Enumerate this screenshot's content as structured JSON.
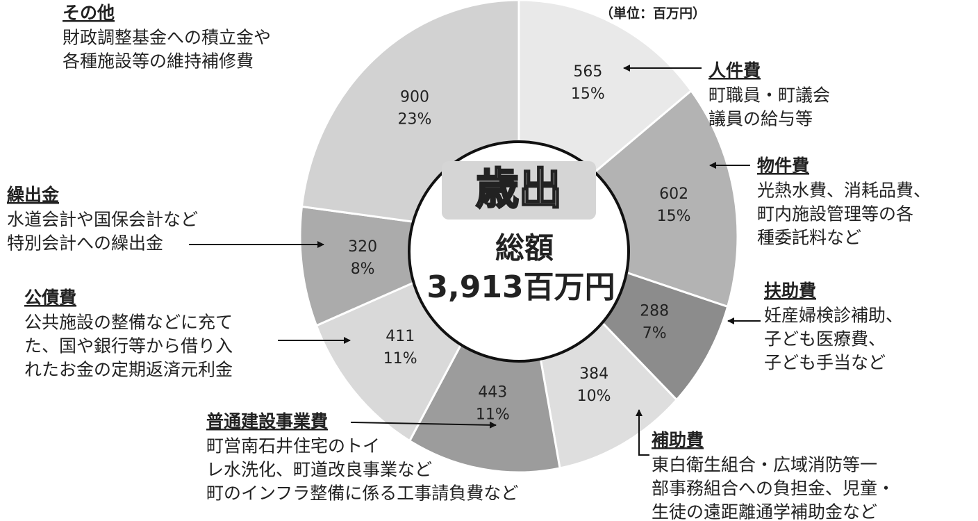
{
  "chart_data": {
    "type": "pie",
    "unit_note": "（単位：百万円）",
    "center_title": "歳出",
    "center_label": "総額",
    "center_total": "3,913百万円",
    "categories": [
      "人件費",
      "物件費",
      "扶助費",
      "補助費",
      "普通建設事業費",
      "公債費",
      "繰出金",
      "その他"
    ],
    "values": [
      565,
      602,
      288,
      384,
      443,
      411,
      320,
      900
    ],
    "percent_labels": [
      "15%",
      "15%",
      "7%",
      "10%",
      "11%",
      "11%",
      "8%",
      "23%"
    ],
    "colors": [
      "#e9e9e9",
      "#b3b3b3",
      "#8c8c8c",
      "#dedede",
      "#9c9c9c",
      "#d9d9d9",
      "#ababab",
      "#d2d2d2"
    ],
    "descriptions": [
      [
        "町職員・町議会",
        "議員の給与等"
      ],
      [
        "光熱水費、消耗品費、",
        "町内施設管理等の各",
        "種委託料など"
      ],
      [
        "妊産婦検診補助、",
        "子ども医療費、",
        "子ども手当など"
      ],
      [
        "東白衛生組合・広域消防等一",
        "部事務組合への負担金、児童・",
        "生徒の遠距離通学補助金など"
      ],
      [
        "町営南石井住宅のトイ",
        "レ水洗化、町道改良事業など",
        "町のインフラ整備に係る工事請負費など"
      ],
      [
        "公共施設の整備などに充て",
        "た、国や銀行等から借り入",
        "れたお金の定期返済元利金"
      ],
      [
        "水道会計や国保会計など",
        "特別会計への繰出金"
      ],
      [
        "財政調整基金への積立金や",
        "各種施設等の維持補修費"
      ]
    ]
  }
}
